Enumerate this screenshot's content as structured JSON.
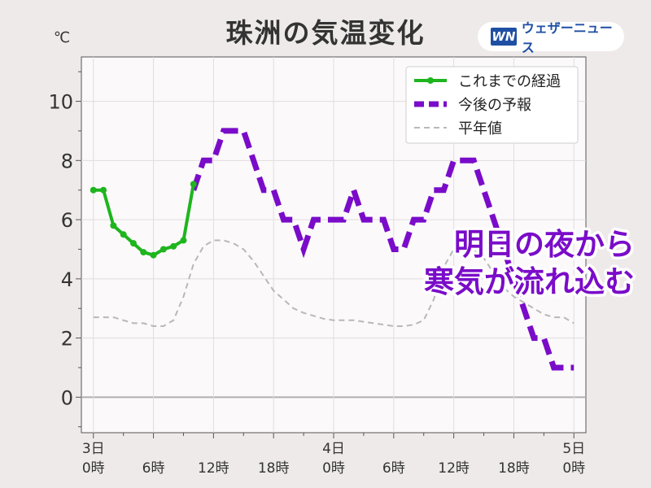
{
  "logo": {
    "mark": "WN",
    "name": "ウェザーニュース"
  },
  "chart_data": {
    "type": "line",
    "title": "珠洲の気温変化",
    "unit_label": "℃",
    "ylim": [
      -1.2,
      11.5
    ],
    "xlim": [
      -1.2,
      49.2
    ],
    "y_ticks": [
      0,
      2,
      4,
      6,
      8,
      10
    ],
    "x_ticks": [
      {
        "x": 0,
        "label1": "3日",
        "label2": "0時"
      },
      {
        "x": 6,
        "label1": "",
        "label2": "6時"
      },
      {
        "x": 12,
        "label1": "",
        "label2": "12時"
      },
      {
        "x": 18,
        "label1": "",
        "label2": "18時"
      },
      {
        "x": 24,
        "label1": "4日",
        "label2": "0時"
      },
      {
        "x": 30,
        "label1": "",
        "label2": "6時"
      },
      {
        "x": 36,
        "label1": "",
        "label2": "12時"
      },
      {
        "x": 42,
        "label1": "",
        "label2": "18時"
      },
      {
        "x": 48,
        "label1": "5日",
        "label2": "0時"
      }
    ],
    "grid": true,
    "legend_position": "top-right",
    "annotation": [
      "明日の夜から",
      "寒気が流れ込む"
    ],
    "series": [
      {
        "name": "これまでの経過",
        "color": "#1eb51e",
        "style": "solid-markers",
        "x": [
          0,
          1,
          2,
          3,
          4,
          5,
          6,
          7,
          8,
          9,
          10
        ],
        "y": [
          7.0,
          7.0,
          5.8,
          5.5,
          5.2,
          4.9,
          4.8,
          5.0,
          5.1,
          5.3,
          7.2
        ]
      },
      {
        "name": "今後の予報",
        "color": "#7a0cc9",
        "style": "dashed-thick",
        "x": [
          10,
          11,
          12,
          13,
          14,
          15,
          16,
          17,
          18,
          19,
          20,
          21,
          22,
          23,
          24,
          25,
          26,
          27,
          28,
          29,
          30,
          31,
          32,
          33,
          34,
          35,
          36,
          37,
          38,
          39,
          40,
          41,
          42,
          43,
          44,
          45,
          46,
          47,
          48
        ],
        "y": [
          7,
          8,
          8,
          9,
          9,
          9,
          8,
          7,
          7,
          6,
          6,
          5,
          6,
          6,
          6,
          6,
          7,
          6,
          6,
          6,
          5,
          5,
          6,
          6,
          7,
          7,
          8,
          8,
          8,
          7,
          6,
          5,
          4,
          3,
          2,
          2,
          1,
          1,
          1
        ]
      },
      {
        "name": "平年値",
        "color": "#b8b8b8",
        "style": "dashed-thin",
        "x": [
          0,
          1,
          2,
          3,
          4,
          5,
          6,
          7,
          8,
          9,
          10,
          11,
          12,
          13,
          14,
          15,
          16,
          17,
          18,
          19,
          20,
          21,
          22,
          23,
          24,
          25,
          26,
          27,
          28,
          29,
          30,
          31,
          32,
          33,
          34,
          35,
          36,
          37,
          38,
          39,
          40,
          41,
          42,
          43,
          44,
          45,
          46,
          47,
          48
        ],
        "y": [
          2.7,
          2.7,
          2.7,
          2.6,
          2.5,
          2.5,
          2.4,
          2.4,
          2.6,
          3.4,
          4.5,
          5.1,
          5.3,
          5.3,
          5.2,
          5.0,
          4.6,
          4.1,
          3.6,
          3.3,
          3.0,
          2.85,
          2.75,
          2.65,
          2.6,
          2.6,
          2.6,
          2.55,
          2.5,
          2.45,
          2.4,
          2.4,
          2.45,
          2.6,
          3.3,
          4.4,
          5.0,
          5.1,
          5.0,
          4.7,
          4.2,
          3.7,
          3.4,
          3.2,
          3.0,
          2.8,
          2.7,
          2.7,
          2.5
        ]
      }
    ]
  }
}
